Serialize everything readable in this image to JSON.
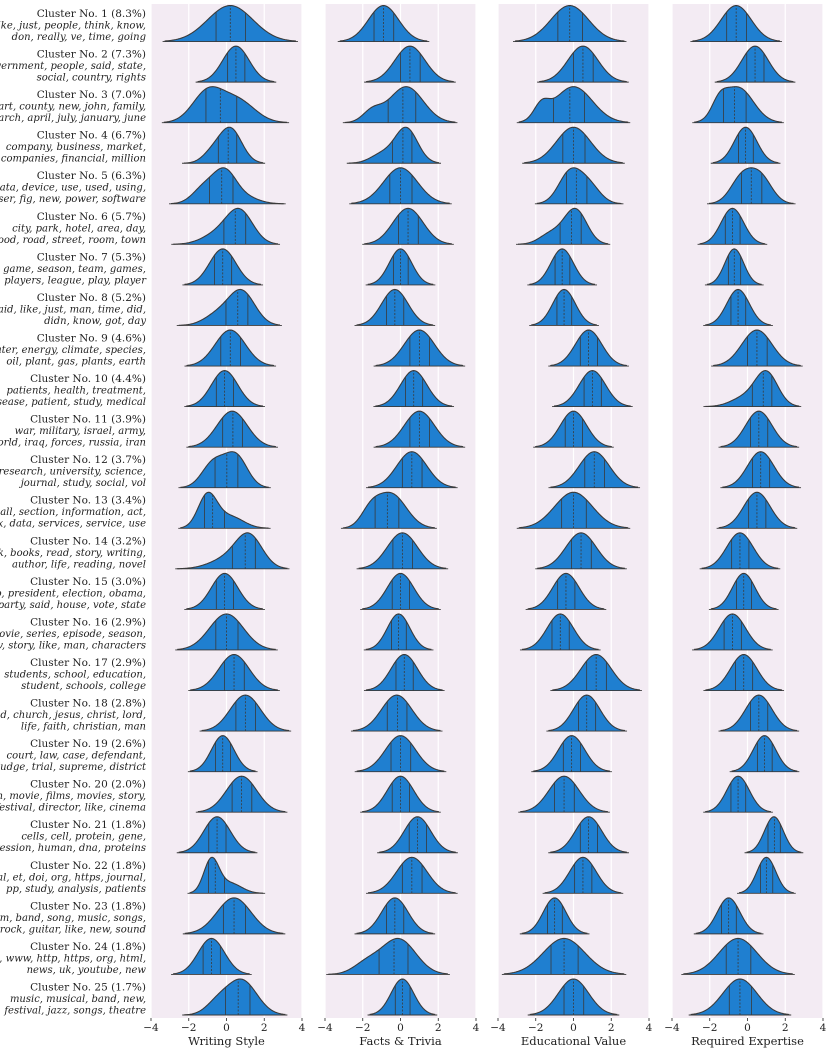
{
  "chart_data": {
    "type": "ridgeline",
    "panels": [
      "Writing Style",
      "Facts & Trivia",
      "Educational Value",
      "Required Expertise"
    ],
    "xlim": [
      -4,
      4
    ],
    "xticks": [
      -4,
      -2,
      0,
      2,
      4
    ],
    "tick_labels": [
      "−4",
      "−2",
      "0",
      "2",
      "4"
    ],
    "grid": true,
    "quartiles_shown": true,
    "colors": {
      "fill": "#1f7fd0",
      "stroke": "#3a3a3a",
      "panel_bg": "#f3ebf3",
      "grid": "#ffffff"
    },
    "clusters": [
      {
        "title": "Cluster No. 1 (8.3%)",
        "words": [
          "like, just, people, think, know,",
          "don, really, ve, time, going"
        ],
        "dists": [
          [
            [
              0.2,
              1.2,
              1
            ]
          ],
          [
            [
              -0.9,
              0.8,
              1
            ]
          ],
          [
            [
              -0.2,
              1.0,
              1
            ]
          ],
          [
            [
              -0.6,
              0.8,
              1
            ]
          ]
        ]
      },
      {
        "title": "Cluster No. 2 (7.3%)",
        "words": [
          "government, people, said, state,",
          "social, country, rights"
        ],
        "dists": [
          [
            [
              0.5,
              0.7,
              1
            ]
          ],
          [
            [
              0.5,
              0.8,
              1
            ]
          ],
          [
            [
              0.5,
              0.8,
              1
            ]
          ],
          [
            [
              0.4,
              0.7,
              1
            ]
          ]
        ]
      },
      {
        "title": "Cluster No. 3 (7.0%)",
        "words": [
          "art, county, new, john, family,",
          "march, april, july, january, june"
        ],
        "dists": [
          [
            [
              -1.0,
              0.8,
              0.7
            ],
            [
              0.6,
              0.9,
              0.5
            ]
          ],
          [
            [
              0.3,
              0.9,
              1
            ],
            [
              -1.5,
              0.5,
              0.3
            ]
          ],
          [
            [
              0,
              1.0,
              1
            ],
            [
              -1.7,
              0.4,
              0.4
            ]
          ],
          [
            [
              -0.5,
              0.8,
              1
            ],
            [
              -1.5,
              0.4,
              0.4
            ]
          ]
        ]
      },
      {
        "title": "Cluster No. 4 (6.7%)",
        "words": [
          "company, business, market,",
          "companies, financial, million"
        ],
        "dists": [
          [
            [
              0.2,
              0.6,
              1
            ],
            [
              -0.8,
              0.5,
              0.25
            ]
          ],
          [
            [
              0.3,
              0.6,
              1
            ],
            [
              -1.0,
              0.6,
              0.25
            ]
          ],
          [
            [
              0,
              0.9,
              1
            ]
          ],
          [
            [
              -0.1,
              0.6,
              1
            ]
          ]
        ]
      },
      {
        "title": "Cluster No. 5 (6.3%)",
        "words": [
          "data, device, use, used, using,",
          "user, fig, new, power, software"
        ],
        "dists": [
          [
            [
              -0.1,
              0.6,
              1
            ],
            [
              -1.2,
              0.6,
              0.5
            ],
            [
              1.0,
              0.7,
              0.2
            ]
          ],
          [
            [
              0,
              0.9,
              1
            ]
          ],
          [
            [
              -0.2,
              0.6,
              1
            ],
            [
              0.8,
              0.6,
              0.6
            ]
          ],
          [
            [
              0.7,
              0.6,
              0.8
            ],
            [
              -0.3,
              0.6,
              0.8
            ]
          ]
        ]
      },
      {
        "title": "Cluster No. 6 (5.7%)",
        "words": [
          "city, park, hotel, area, day,",
          "food, road, street, room, town"
        ],
        "dists": [
          [
            [
              0.7,
              0.7,
              1
            ],
            [
              -0.5,
              0.8,
              0.3
            ]
          ],
          [
            [
              0.4,
              0.8,
              1
            ]
          ],
          [
            [
              0.1,
              0.6,
              1
            ],
            [
              -1.2,
              0.6,
              0.3
            ]
          ],
          [
            [
              -0.8,
              0.6,
              1
            ]
          ]
        ]
      },
      {
        "title": "Cluster No. 7 (5.3%)",
        "words": [
          "game, season, team, games,",
          "players, league, play, player"
        ],
        "dists": [
          [
            [
              -0.2,
              0.7,
              1
            ]
          ],
          [
            [
              0,
              0.6,
              1
            ]
          ],
          [
            [
              -0.6,
              0.6,
              1
            ]
          ],
          [
            [
              -0.7,
              0.5,
              1
            ]
          ]
        ]
      },
      {
        "title": "Cluster No. 8 (5.2%)",
        "words": [
          "said, like, just, man, time, did,",
          "didn, know, got, day"
        ],
        "dists": [
          [
            [
              0.8,
              0.7,
              1
            ],
            [
              -0.5,
              0.7,
              0.3
            ]
          ],
          [
            [
              -0.3,
              0.7,
              1
            ]
          ],
          [
            [
              -0.5,
              0.6,
              1
            ]
          ],
          [
            [
              -0.5,
              0.6,
              1
            ]
          ]
        ]
      },
      {
        "title": "Cluster No. 9 (4.6%)",
        "words": [
          "water, energy, climate, species,",
          "oil, plant, gas, plants, earth"
        ],
        "dists": [
          [
            [
              0.2,
              0.8,
              1
            ]
          ],
          [
            [
              1.0,
              0.8,
              1
            ]
          ],
          [
            [
              0.8,
              0.7,
              1
            ]
          ],
          [
            [
              0.5,
              0.8,
              1
            ]
          ]
        ]
      },
      {
        "title": "Cluster No. 10 (4.4%)",
        "words": [
          "patients, health, treatment,",
          "disease, patient, study, medical"
        ],
        "dists": [
          [
            [
              -0.1,
              0.7,
              1
            ]
          ],
          [
            [
              0.7,
              0.7,
              1
            ]
          ],
          [
            [
              1.0,
              0.7,
              1
            ]
          ],
          [
            [
              1.0,
              0.6,
              1
            ],
            [
              -0.2,
              0.7,
              0.25
            ]
          ]
        ]
      },
      {
        "title": "Cluster No. 11 (3.9%)",
        "words": [
          "war, military, israel, army,",
          "world, iraq, forces, russia, iran"
        ],
        "dists": [
          [
            [
              0.3,
              0.8,
              1
            ]
          ],
          [
            [
              1.0,
              0.8,
              1
            ]
          ],
          [
            [
              0,
              0.7,
              1
            ]
          ],
          [
            [
              0.6,
              0.7,
              1
            ]
          ]
        ]
      },
      {
        "title": "Cluster No. 12 (3.7%)",
        "words": [
          "research, university, science,",
          "journal, study, social, vol"
        ],
        "dists": [
          [
            [
              0.5,
              0.6,
              0.9
            ],
            [
              -0.7,
              0.6,
              0.7
            ]
          ],
          [
            [
              0.6,
              0.8,
              1
            ]
          ],
          [
            [
              1.1,
              0.8,
              1
            ]
          ],
          [
            [
              0.7,
              0.7,
              1
            ]
          ]
        ]
      },
      {
        "title": "Cluster No. 13 (3.4%)",
        "words": [
          "shall, section, information, act,",
          "tax, data, services, service, use"
        ],
        "dists": [
          [
            [
              -1.0,
              0.5,
              1
            ],
            [
              0.2,
              0.7,
              0.35
            ]
          ],
          [
            [
              -0.5,
              0.8,
              1
            ],
            [
              -1.6,
              0.5,
              0.4
            ]
          ],
          [
            [
              0,
              1.0,
              1
            ]
          ],
          [
            [
              0.5,
              0.7,
              1
            ]
          ]
        ]
      },
      {
        "title": "Cluster No. 14 (3.2%)",
        "words": [
          "book, books, read, story, writing,",
          "author, life, reading, novel"
        ],
        "dists": [
          [
            [
              1.2,
              0.7,
              1
            ],
            [
              0,
              0.9,
              0.3
            ]
          ],
          [
            [
              0.1,
              0.8,
              1
            ]
          ],
          [
            [
              0.4,
              0.8,
              1
            ]
          ],
          [
            [
              -0.4,
              0.7,
              1
            ]
          ]
        ]
      },
      {
        "title": "Cluster No. 15 (3.0%)",
        "words": [
          "trump, president, election, obama,",
          "party, said, house, vote, state"
        ],
        "dists": [
          [
            [
              -0.1,
              0.7,
              1
            ]
          ],
          [
            [
              0,
              0.7,
              1
            ]
          ],
          [
            [
              -0.4,
              0.7,
              1
            ]
          ],
          [
            [
              -0.2,
              0.6,
              1
            ]
          ]
        ]
      },
      {
        "title": "Cluster No. 16 (2.9%)",
        "words": [
          "movie, series, episode, season,",
          "tv, story, like, man, characters"
        ],
        "dists": [
          [
            [
              0,
              0.9,
              1
            ]
          ],
          [
            [
              -0.1,
              0.6,
              1
            ]
          ],
          [
            [
              -0.7,
              0.7,
              1
            ]
          ],
          [
            [
              -0.8,
              0.7,
              1
            ]
          ]
        ]
      },
      {
        "title": "Cluster No. 17 (2.9%)",
        "words": [
          "students, school, education,",
          "student, schools, college"
        ],
        "dists": [
          [
            [
              0.4,
              0.8,
              1
            ]
          ],
          [
            [
              0.2,
              0.7,
              1
            ]
          ],
          [
            [
              1.2,
              0.8,
              1
            ]
          ],
          [
            [
              -0.2,
              0.7,
              1
            ]
          ]
        ]
      },
      {
        "title": "Cluster No. 18 (2.8%)",
        "words": [
          "god, church, jesus, christ, lord,",
          "life, faith, christian, man"
        ],
        "dists": [
          [
            [
              1.0,
              0.8,
              1
            ]
          ],
          [
            [
              -0.2,
              0.8,
              1
            ]
          ],
          [
            [
              0.7,
              0.7,
              1
            ]
          ],
          [
            [
              0.6,
              0.7,
              1
            ]
          ]
        ]
      },
      {
        "title": "Cluster No. 19 (2.6%)",
        "words": [
          "court, law, case, defendant,",
          "judge, trial, supreme, district"
        ],
        "dists": [
          [
            [
              -0.2,
              0.6,
              1
            ]
          ],
          [
            [
              0,
              0.8,
              1
            ]
          ],
          [
            [
              -0.1,
              0.7,
              1
            ]
          ],
          [
            [
              0.9,
              0.6,
              1
            ]
          ]
        ]
      },
      {
        "title": "Cluster No. 20 (2.0%)",
        "words": [
          "film, movie, films, movies, story,",
          "festival, director, like, cinema"
        ],
        "dists": [
          [
            [
              0.8,
              0.8,
              1
            ]
          ],
          [
            [
              0,
              0.7,
              1
            ]
          ],
          [
            [
              -0.5,
              0.8,
              1
            ]
          ],
          [
            [
              -0.5,
              0.6,
              1
            ]
          ]
        ]
      },
      {
        "title": "Cluster No. 21 (1.8%)",
        "words": [
          "cells, cell, protein, gene,",
          "expression, human, dna, proteins"
        ],
        "dists": [
          [
            [
              -0.5,
              0.7,
              1
            ]
          ],
          [
            [
              0.9,
              0.7,
              1
            ]
          ],
          [
            [
              0.8,
              0.7,
              1
            ]
          ],
          [
            [
              1.4,
              0.5,
              1
            ]
          ]
        ]
      },
      {
        "title": "Cluster No. 22 (1.8%)",
        "words": [
          "al, et, doi, org, https, journal,",
          "pp, study, analysis, patients"
        ],
        "dists": [
          [
            [
              -0.8,
              0.4,
              1
            ],
            [
              0.2,
              0.6,
              0.3
            ]
          ],
          [
            [
              0.6,
              0.8,
              1
            ]
          ],
          [
            [
              0.5,
              0.7,
              1
            ]
          ],
          [
            [
              1.0,
              0.5,
              1
            ]
          ]
        ]
      },
      {
        "title": "Cluster No. 23 (1.8%)",
        "words": [
          "album, band, song, music, songs,",
          "rock, guitar, like, new, sound"
        ],
        "dists": [
          [
            [
              0.4,
              0.9,
              1
            ]
          ],
          [
            [
              -0.3,
              0.7,
              1
            ]
          ],
          [
            [
              -1.0,
              0.6,
              1
            ]
          ],
          [
            [
              -1.0,
              0.6,
              1
            ]
          ]
        ]
      },
      {
        "title": "Cluster No. 24 (1.8%)",
        "words": [
          "com, www, http, https, org, html,",
          "news, uk, youtube, new"
        ],
        "dists": [
          [
            [
              -0.8,
              0.7,
              1
            ]
          ],
          [
            [
              -0.1,
              0.9,
              1
            ],
            [
              -1.8,
              0.7,
              0.3
            ]
          ],
          [
            [
              -0.5,
              1.1,
              1
            ]
          ],
          [
            [
              -0.5,
              1.0,
              1
            ]
          ]
        ]
      },
      {
        "title": "Cluster No. 25 (1.7%)",
        "words": [
          "music, musical, band, new,",
          "festival, jazz, songs, theatre"
        ],
        "dists": [
          [
            [
              0.8,
              0.8,
              1
            ],
            [
              -0.5,
              0.6,
              0.3
            ]
          ],
          [
            [
              0.1,
              0.6,
              1
            ]
          ],
          [
            [
              0,
              0.8,
              1
            ]
          ],
          [
            [
              -0.4,
              0.9,
              1
            ]
          ]
        ]
      }
    ]
  }
}
